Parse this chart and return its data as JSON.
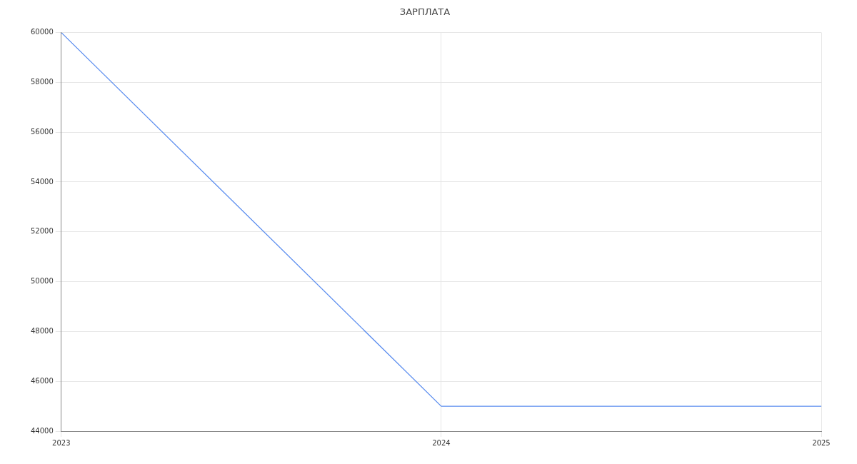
{
  "chart_data": {
    "type": "line",
    "title": "ЗАРПЛАТА",
    "x": [
      2023,
      2024,
      2025
    ],
    "series": [
      {
        "color": "#5b8def",
        "values": [
          60000,
          45000,
          45000
        ]
      }
    ],
    "xlim": [
      2023,
      2025
    ],
    "xticks": [
      2023,
      2024,
      2025
    ],
    "ylim": [
      44000,
      60000
    ],
    "yticks": [
      44000,
      46000,
      48000,
      50000,
      52000,
      54000,
      56000,
      58000,
      60000
    ],
    "grid": true,
    "legend": false,
    "marker": "none",
    "line_style": "solid"
  }
}
